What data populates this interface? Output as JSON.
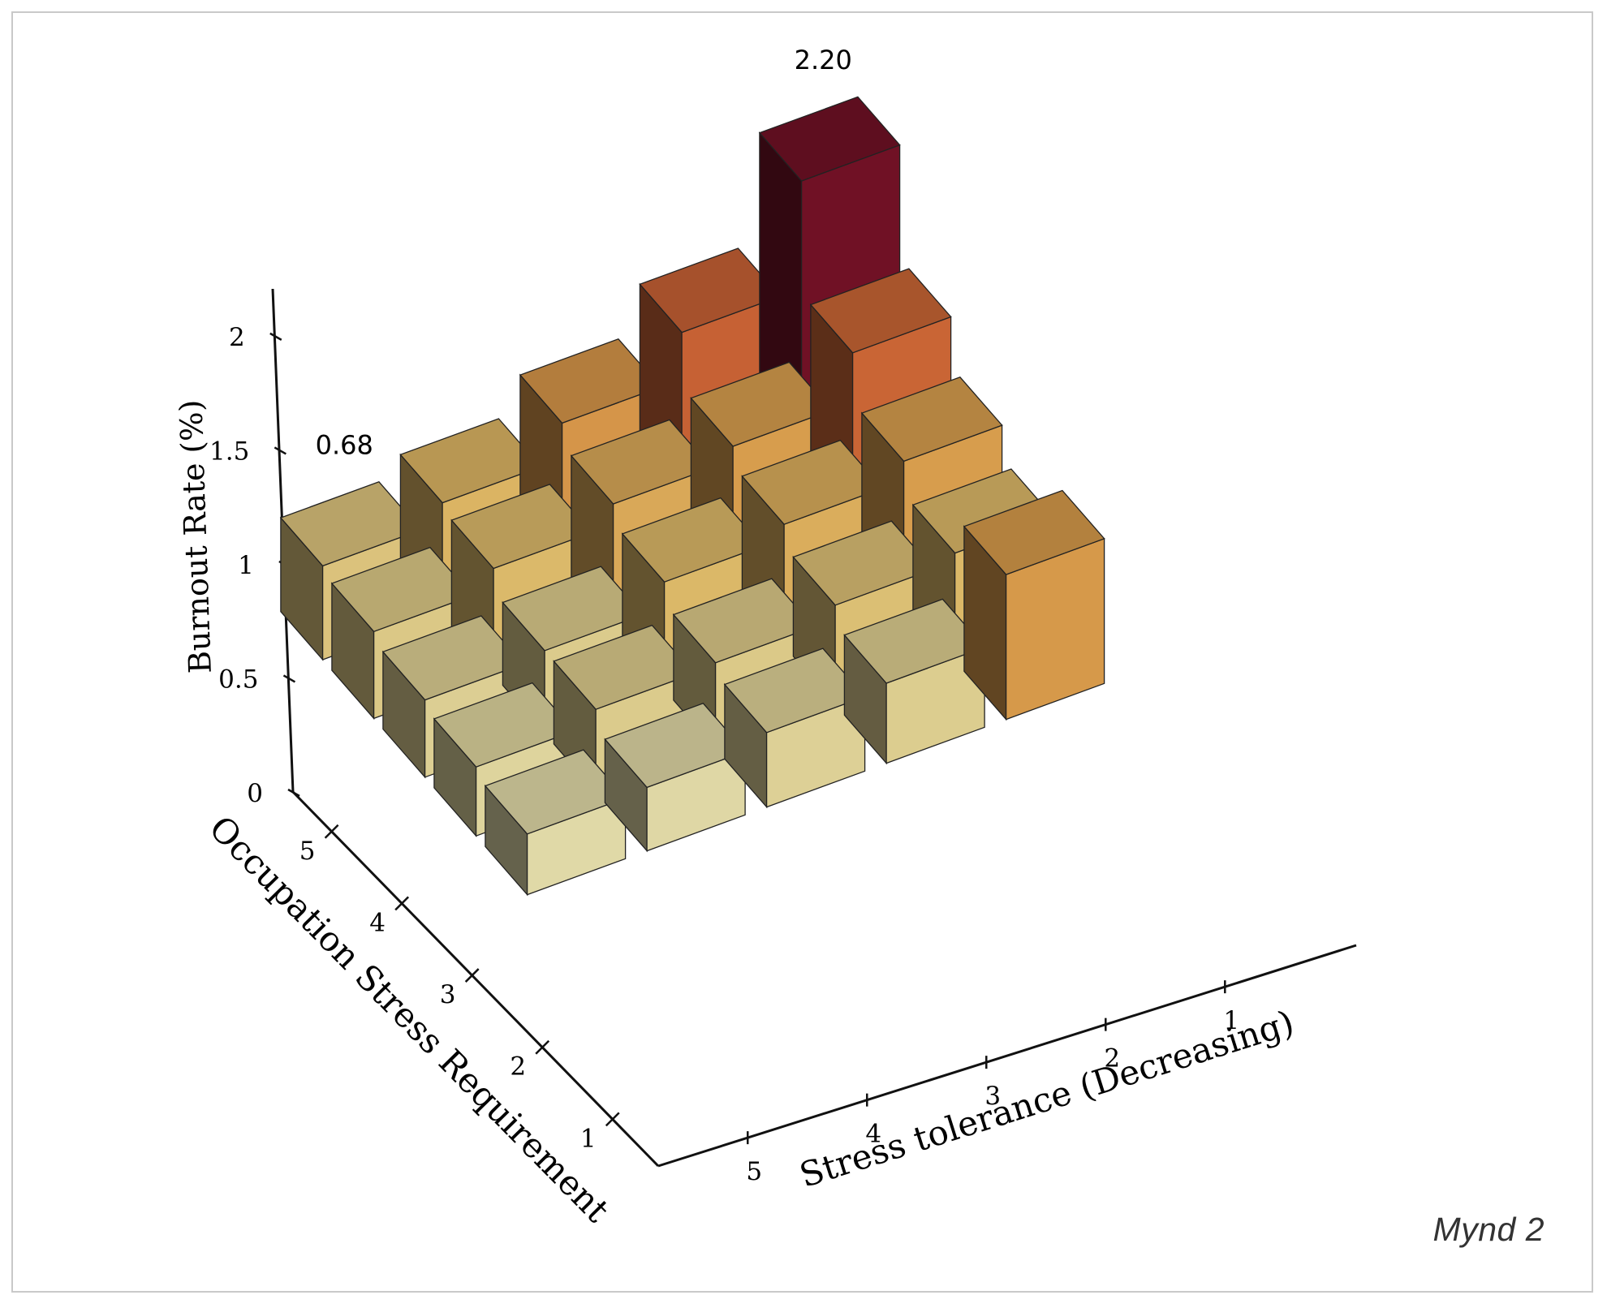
{
  "caption": "Mynd 2",
  "chart_data": {
    "type": "bar3d",
    "title": "",
    "xlabel": "Stress tolerance (Decreasing)",
    "ylabel": "Occupation Stress Requirement",
    "zlabel": "Burnout Rate (%)",
    "x_categories": [
      "5",
      "4",
      "3",
      "2",
      "1"
    ],
    "y_categories": [
      "5",
      "4",
      "3",
      "2",
      "1"
    ],
    "z_ticks": [
      "0",
      "0.5",
      "1",
      "1.5",
      "2"
    ],
    "zlim": [
      0,
      2.25
    ],
    "values_by_occupation_row": [
      {
        "occupation": "5",
        "values": [
          0.68,
          0.82,
          1.08,
          1.42,
          2.2
        ]
      },
      {
        "occupation": "4",
        "values": [
          0.63,
          0.77,
          0.92,
          1.02,
          1.38
        ]
      },
      {
        "occupation": "3",
        "values": [
          0.56,
          0.6,
          0.78,
          0.88,
          1.02
        ]
      },
      {
        "occupation": "2",
        "values": [
          0.5,
          0.6,
          0.62,
          0.72,
          0.78
        ]
      },
      {
        "occupation": "1",
        "values": [
          0.44,
          0.46,
          0.54,
          0.58,
          1.05
        ]
      }
    ],
    "annotations": [
      {
        "text": "0.68",
        "target": "occupation 5, stress tolerance 5"
      },
      {
        "text": "2.20",
        "target": "occupation 5, stress tolerance 1"
      }
    ],
    "colormap": "YlOrRd",
    "grid": false,
    "legend": "none"
  }
}
